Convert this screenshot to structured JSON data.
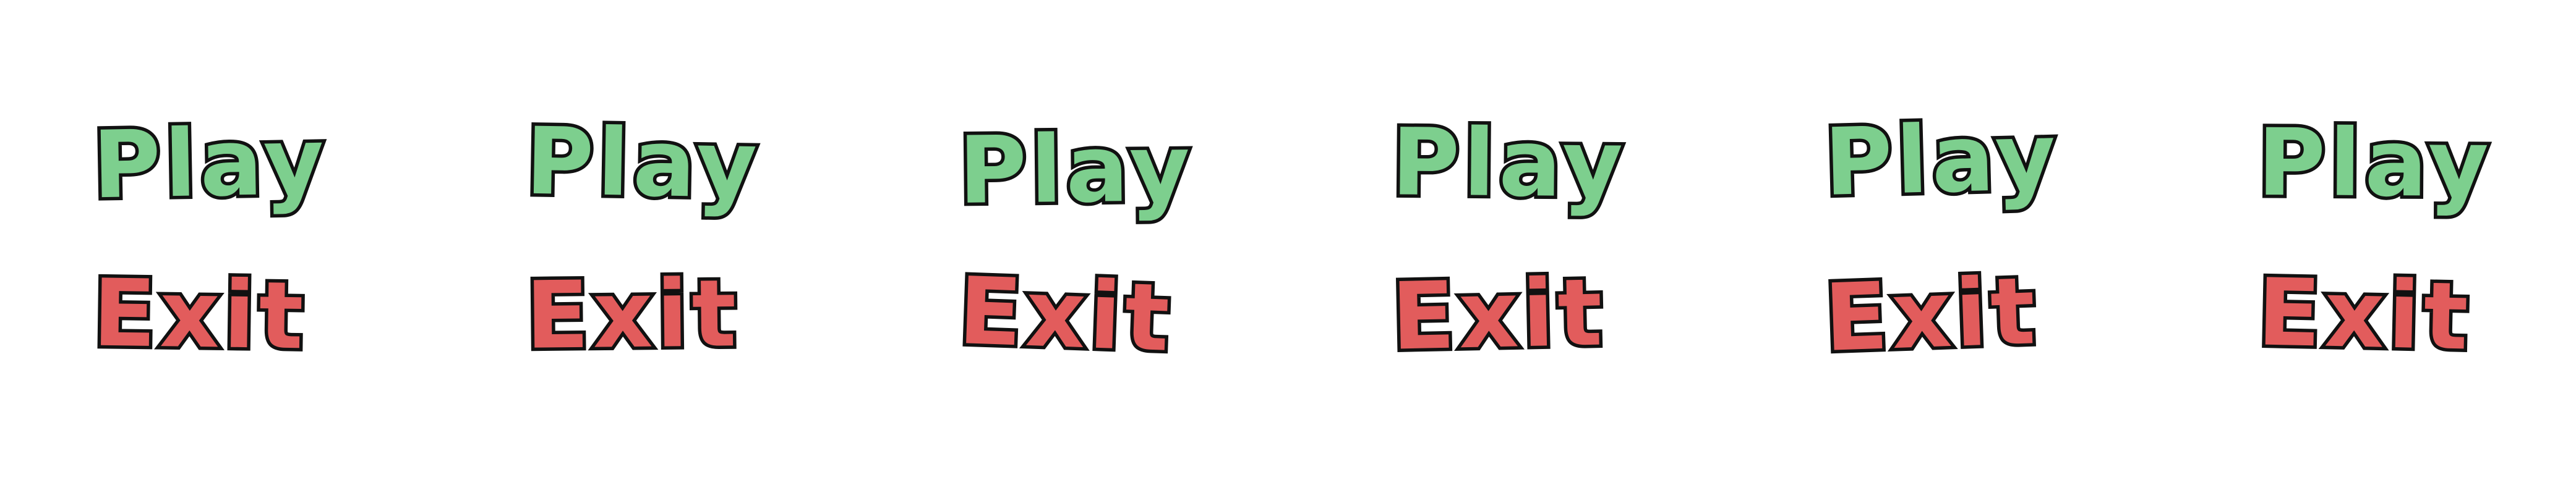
{
  "menu_variants": [
    {
      "play_label": "Play",
      "exit_label": "Exit"
    },
    {
      "play_label": "Play",
      "exit_label": "Exit"
    },
    {
      "play_label": "Play",
      "exit_label": "Exit"
    },
    {
      "play_label": "Play",
      "exit_label": "Exit"
    },
    {
      "play_label": "Play",
      "exit_label": "Exit"
    },
    {
      "play_label": "Play",
      "exit_label": "Exit"
    }
  ],
  "colors": {
    "play": "#7dcf8e",
    "exit": "#e25c5c",
    "outline": "#111111",
    "background": "#ffffff"
  }
}
